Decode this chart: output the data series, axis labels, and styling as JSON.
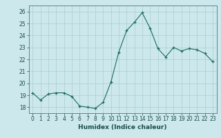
{
  "x": [
    0,
    1,
    2,
    3,
    4,
    5,
    6,
    7,
    8,
    9,
    10,
    11,
    12,
    13,
    14,
    15,
    16,
    17,
    18,
    19,
    20,
    21,
    22,
    23
  ],
  "y": [
    19.2,
    18.6,
    19.1,
    19.2,
    19.2,
    18.9,
    18.1,
    18.0,
    17.9,
    18.4,
    20.1,
    22.6,
    24.4,
    25.1,
    25.9,
    24.6,
    22.9,
    22.2,
    23.0,
    22.7,
    22.9,
    22.8,
    22.5,
    21.8
  ],
  "xlabel": "Humidex (Indice chaleur)",
  "ylim": [
    17.5,
    26.5
  ],
  "xlim": [
    -0.5,
    23.5
  ],
  "yticks": [
    18,
    19,
    20,
    21,
    22,
    23,
    24,
    25,
    26
  ],
  "xticks": [
    0,
    1,
    2,
    3,
    4,
    5,
    6,
    7,
    8,
    9,
    10,
    11,
    12,
    13,
    14,
    15,
    16,
    17,
    18,
    19,
    20,
    21,
    22,
    23
  ],
  "line_color": "#1a6b5a",
  "marker_color": "#1a6b5a",
  "bg_color": "#cce8ec",
  "grid_color": "#aacdd2",
  "tick_color": "#1a4a4a",
  "xlabel_fontsize": 6.5,
  "tick_fontsize": 5.5
}
